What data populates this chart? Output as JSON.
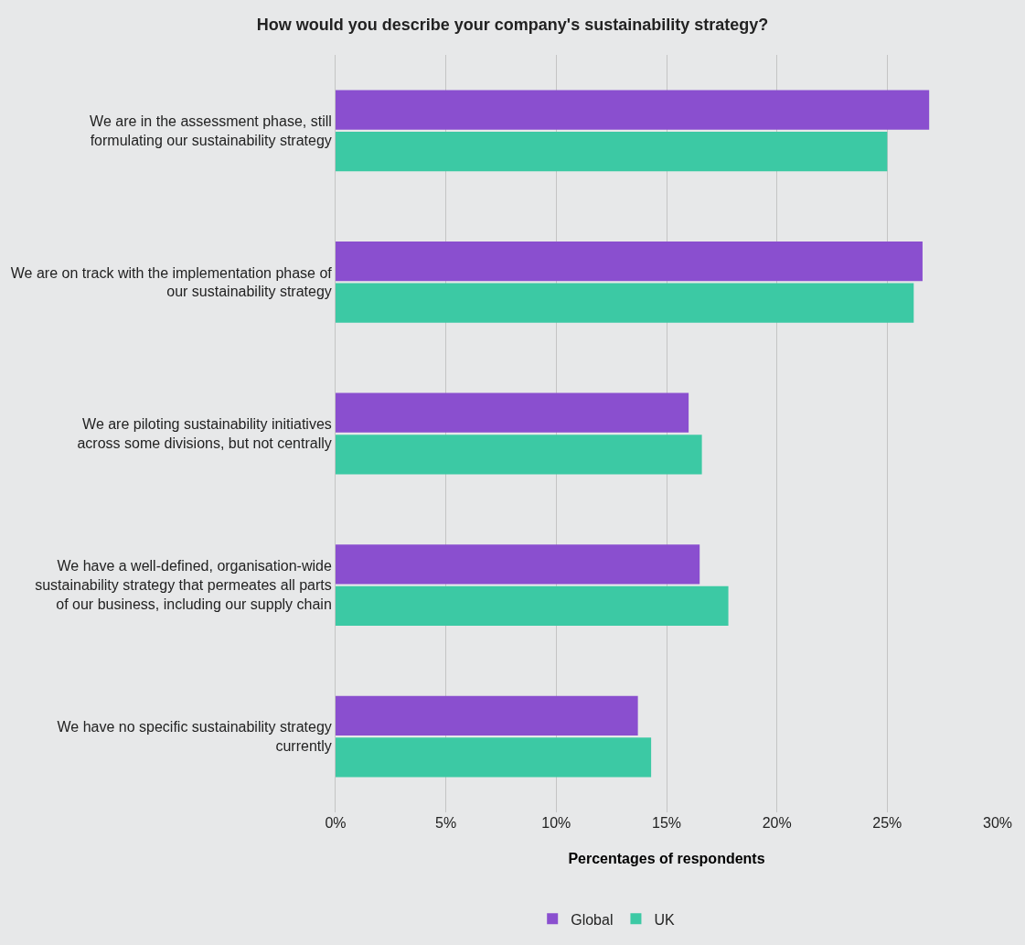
{
  "chart_data": {
    "type": "bar",
    "orientation": "horizontal",
    "title": "How would you describe your company's sustainability strategy?",
    "xlabel": "Percentages of respondents",
    "categories": [
      "We are in the assessment phase, still formulating our sustainability strategy",
      "We are on track with the implementation phase of our sustainability strategy",
      "We are piloting sustainability initiatives across some divisions, but not centrally",
      "We have a well-defined, organisation-wide sustainability strategy that permeates all parts of our business, including our supply chain",
      "We have no specific sustainability strategy currently"
    ],
    "series": [
      {
        "name": "Global",
        "color": "#8a4fcf",
        "values": [
          26.9,
          26.6,
          16.0,
          16.5,
          13.7
        ]
      },
      {
        "name": "UK",
        "color": "#3cc9a4",
        "values": [
          25.0,
          26.2,
          16.6,
          17.8,
          14.3
        ]
      }
    ],
    "xlim": [
      0,
      30
    ],
    "xticks": [
      {
        "value": 0,
        "label": "0%"
      },
      {
        "value": 5,
        "label": "5%"
      },
      {
        "value": 10,
        "label": "10%"
      },
      {
        "value": 15,
        "label": "15%"
      },
      {
        "value": 20,
        "label": "20%"
      },
      {
        "value": 25,
        "label": "25%"
      },
      {
        "value": 30,
        "label": "30%"
      }
    ],
    "grid": "x",
    "legend": "bottom"
  }
}
